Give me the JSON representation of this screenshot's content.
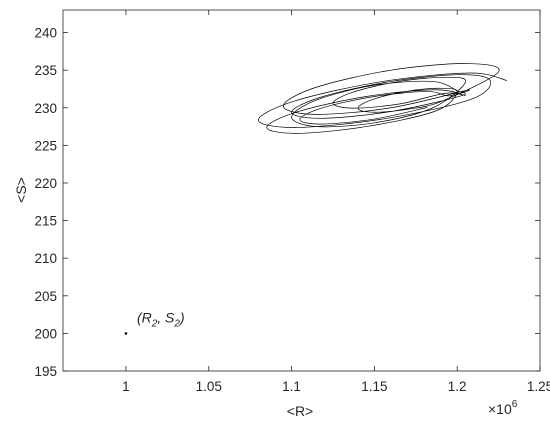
{
  "chart_data": {
    "type": "line",
    "xlabel": "<R>",
    "ylabel": "<S>",
    "x_multiplier": {
      "base": "×10",
      "exponent": "6"
    },
    "xlim": [
      0.962,
      1.25
    ],
    "ylim": [
      195,
      243
    ],
    "xticks": [
      1,
      1.05,
      1.1,
      1.15,
      1.2,
      1.25
    ],
    "yticks": [
      195,
      200,
      205,
      210,
      215,
      220,
      225,
      230,
      235,
      240
    ],
    "grid": false,
    "series": [
      {
        "color": "#000000",
        "x": [
          1.23,
          1.208,
          1.155,
          1.102,
          1.08,
          1.102,
          1.155,
          1.208,
          1.22,
          1.202,
          1.16,
          1.118,
          1.1,
          1.118,
          1.16,
          1.202,
          1.2,
          1.185,
          1.15,
          1.115,
          1.1,
          1.115,
          1.15,
          1.185,
          1.205,
          1.193,
          1.165,
          1.137,
          1.125,
          1.137,
          1.165,
          1.193,
          1.205,
          1.187,
          1.145,
          1.103,
          1.085,
          1.103,
          1.145,
          1.187,
          1.2,
          1.191,
          1.17,
          1.149,
          1.14,
          1.149,
          1.17,
          1.191,
          1.225,
          1.206,
          1.16,
          1.114,
          1.095,
          1.114,
          1.16,
          1.206,
          1.195,
          1.182,
          1.15,
          1.118,
          1.105,
          1.118,
          1.15,
          1.182
        ],
        "values": [
          233.63,
          234.62,
          233.5,
          230.91,
          228.38,
          227.38,
          228.5,
          231.09,
          233.6,
          234.4,
          233.5,
          231.43,
          229.4,
          228.6,
          229.5,
          231.57,
          232.25,
          233.5,
          233,
          231.03,
          228.75,
          227.5,
          228,
          229.97,
          233.4,
          234.05,
          233.5,
          232.07,
          230.6,
          229.95,
          230.5,
          231.93,
          231.6,
          232.4,
          231.5,
          229.43,
          227.4,
          226.6,
          227.5,
          229.57,
          232.05,
          232.59,
          232.2,
          231.11,
          229.95,
          229.41,
          229.8,
          230.89,
          234.78,
          235.88,
          235,
          232.66,
          230.23,
          229.12,
          230,
          232.34,
          231.58,
          232.17,
          231.5,
          229.95,
          228.43,
          227.83,
          228.5,
          230.05
        ]
      }
    ],
    "annotation": {
      "x": 1,
      "y": 200,
      "text_parts": [
        "(R",
        "2",
        ", S",
        "2",
        ")"
      ]
    }
  }
}
